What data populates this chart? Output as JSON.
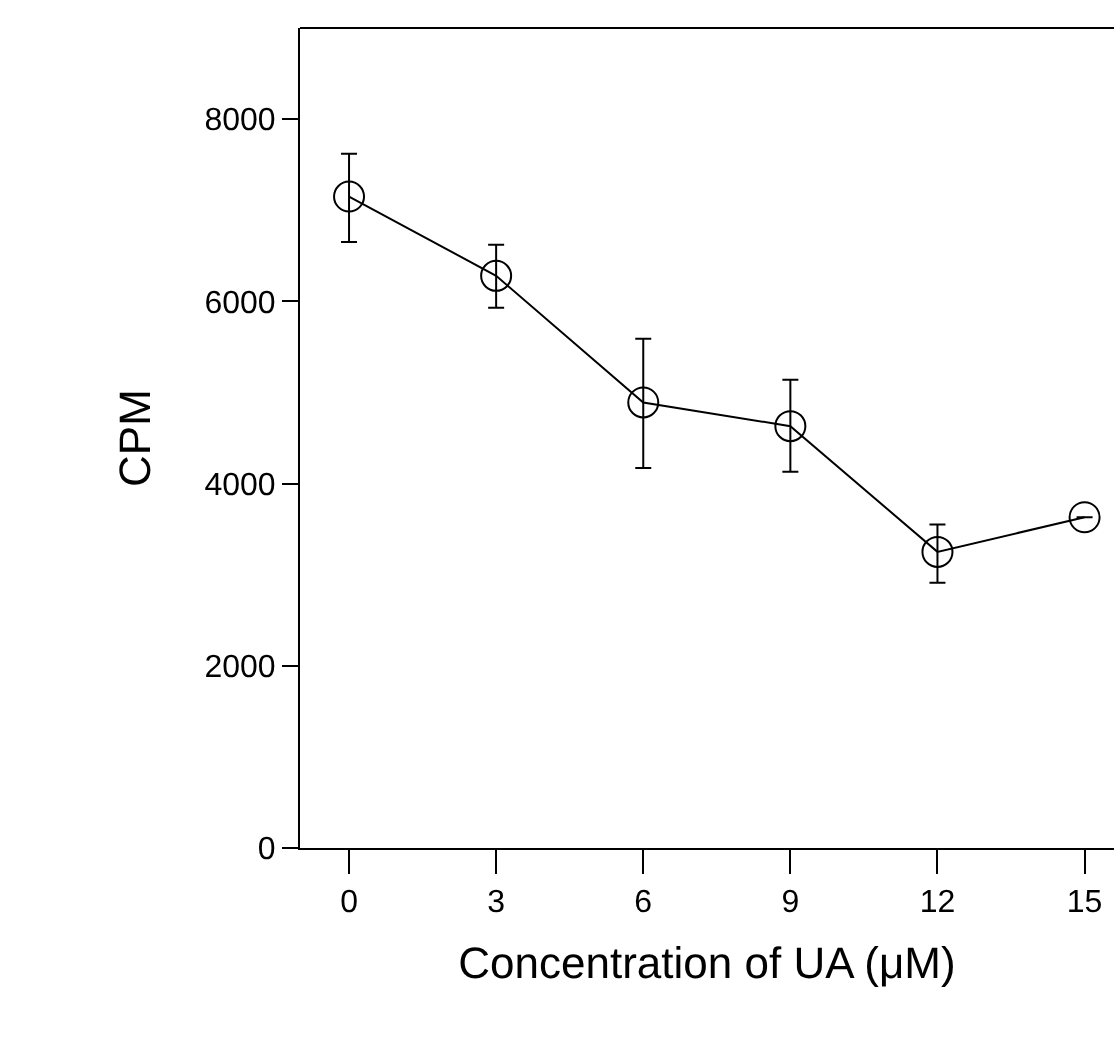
{
  "chart_data": {
    "type": "line",
    "xlabel": "Concentration of UA (μM)",
    "ylabel": "CPM",
    "x": [
      0,
      3,
      6,
      9,
      12,
      15
    ],
    "series": [
      {
        "color": "#000000",
        "values": [
          7150,
          6280,
          4890,
          4630,
          3250,
          3630
        ],
        "errors": [
          [
            6650,
            7620
          ],
          [
            5930,
            6620
          ],
          [
            4170,
            5590
          ],
          [
            4130,
            5140
          ],
          [
            2910,
            3550
          ],
          null
        ]
      }
    ],
    "xlim": [
      -1,
      15.6
    ],
    "xticks": [
      0,
      3,
      6,
      9,
      12,
      15
    ],
    "ylim": [
      0,
      9000
    ],
    "yticks": [
      0,
      2000,
      4000,
      6000,
      8000
    ],
    "grid": false,
    "marker": "circle",
    "line_style": "solid"
  }
}
